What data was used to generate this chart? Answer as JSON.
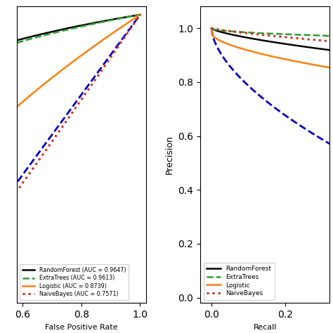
{
  "subplot1": {
    "xlabel": "False Positive Rate",
    "xlim": [
      0.58,
      1.02
    ],
    "ylim": [
      0.28,
      1.02
    ],
    "xticks": [
      0.6,
      0.8,
      1.0
    ]
  },
  "subplot2": {
    "xlabel": "Recall",
    "ylabel": "Precision",
    "xlim": [
      -0.03,
      0.32
    ],
    "ylim": [
      -0.02,
      1.08
    ],
    "xticks": [
      0.0,
      0.2
    ],
    "yticks": [
      0.0,
      0.2,
      0.4,
      0.6,
      0.8,
      1.0
    ]
  },
  "curves": [
    {
      "name": "RandomForest",
      "auc_roc": 0.9647,
      "color": "#000000",
      "linestyle": "solid",
      "linewidth": 1.8
    },
    {
      "name": "ExtraTrees",
      "auc_roc": 0.9613,
      "color": "#2ca02c",
      "linestyle": "dashed",
      "linewidth": 1.8
    },
    {
      "name": "Logistic",
      "auc_roc": 0.8739,
      "color": "#ff7f0e",
      "linestyle": "solid",
      "linewidth": 1.8
    },
    {
      "name": "NaiveBayes",
      "auc_roc": 0.7571,
      "color": "#d62728",
      "linestyle": "dotted",
      "linewidth": 2.2
    }
  ],
  "diagonal_color": "#0000cc",
  "diagonal_linestyle": "dashed",
  "diagonal_linewidth": 2.0,
  "legend1_loc": "lower left",
  "legend2_loc": "lower left",
  "legend1_fontsize": 5.8,
  "legend2_fontsize": 6.5
}
